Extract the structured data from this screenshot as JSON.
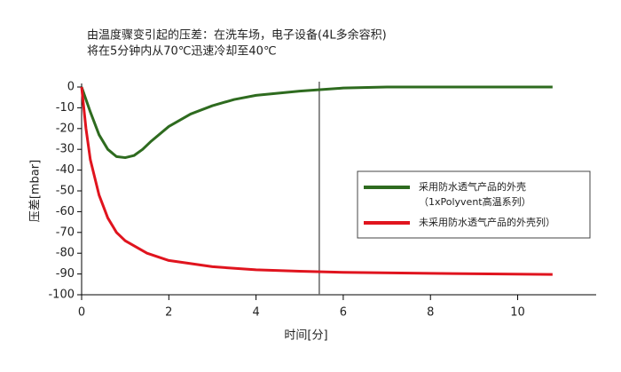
{
  "chart_data": {
    "type": "line",
    "title": [
      "由温度骤变引起的压差：在洗车场，电子设备(4L多余容积)",
      "将在5分钟内从70℃迅速冷却至40℃"
    ],
    "x_label": "时间[分]",
    "y_label": "压差[mbar]",
    "xlim": [
      0,
      11.8
    ],
    "xticks": [
      0,
      2,
      4,
      6,
      8,
      10
    ],
    "ylim": [
      -100,
      0
    ],
    "yticks": [
      0,
      -10,
      -20,
      -30,
      -40,
      -50,
      -60,
      -70,
      -80,
      -90,
      -100
    ],
    "vline_x": 5.45,
    "series": [
      {
        "name": [
          "采用防水透气产品的外壳",
          "（1xPolyvent高温系列）"
        ],
        "color": "#2e6b1f",
        "x": [
          0,
          0.2,
          0.4,
          0.6,
          0.8,
          1.0,
          1.2,
          1.4,
          1.6,
          2,
          2.5,
          3,
          3.5,
          4,
          5,
          6,
          7,
          8,
          9,
          10.8
        ],
        "values": [
          0,
          -12,
          -23,
          -30,
          -33.5,
          -34,
          -33,
          -30,
          -26,
          -19,
          -13,
          -9,
          -6,
          -4,
          -2,
          -0.5,
          0,
          0,
          0,
          0
        ]
      },
      {
        "name": [
          "未采用防水透气产品的外壳列）"
        ],
        "color": "#e0141e",
        "x": [
          0,
          0.1,
          0.2,
          0.4,
          0.6,
          0.8,
          1.0,
          1.5,
          2,
          3,
          4,
          5,
          6,
          8,
          10.8
        ],
        "values": [
          0,
          -20,
          -35,
          -52,
          -63,
          -70,
          -74,
          -80,
          -83.5,
          -86.5,
          -88,
          -88.7,
          -89.2,
          -89.7,
          -90.2
        ]
      }
    ]
  }
}
